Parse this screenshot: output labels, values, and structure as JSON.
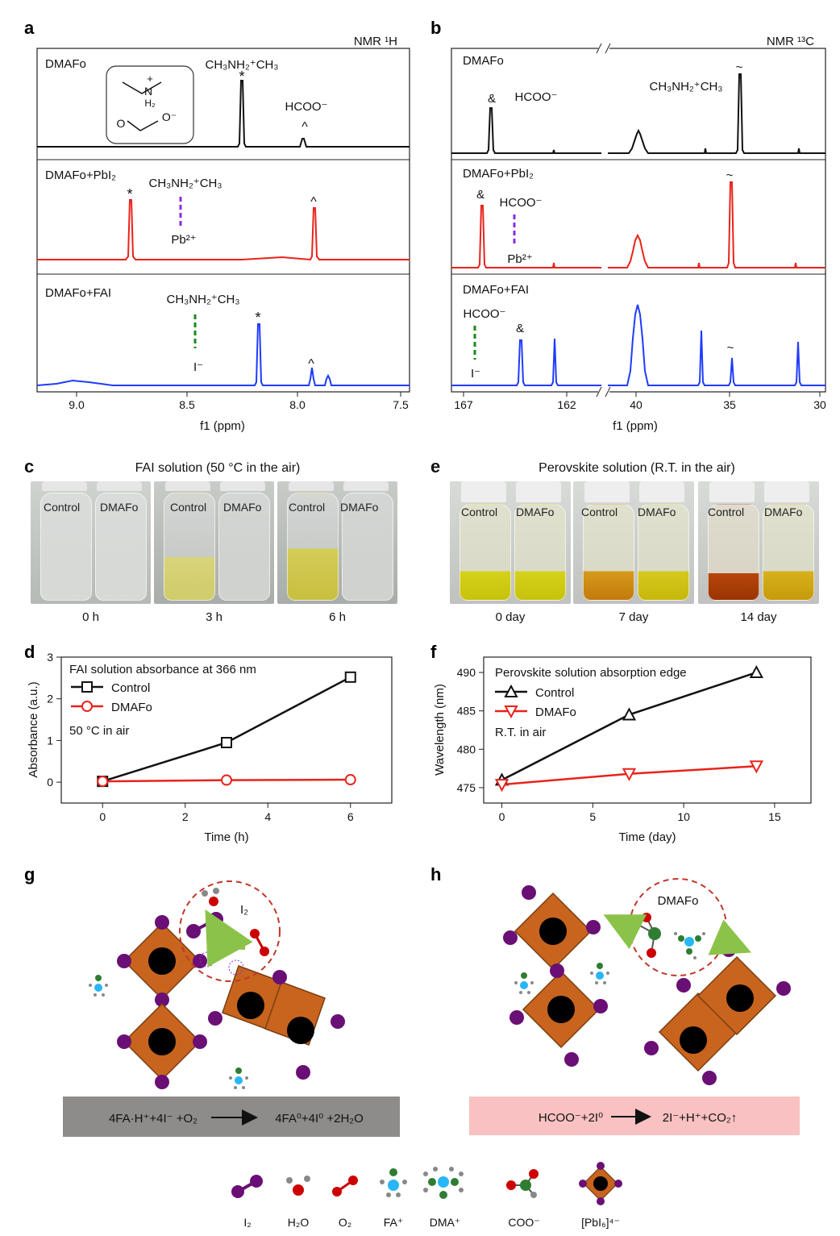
{
  "panel_labels": {
    "a": "a",
    "b": "b",
    "c": "c",
    "d": "d",
    "e": "e",
    "f": "f",
    "g": "g",
    "h": "h"
  },
  "colors": {
    "black": "#111111",
    "red": "#e8231b",
    "blue": "#1f3bff",
    "purple": "#8a2be2",
    "green": "#1a8a1a",
    "crystal": "#c8641e",
    "legend_gray": "#8e8c8a",
    "legend_pink": "#f9c1c1"
  },
  "panel_a": {
    "nmr_label": "NMR ¹H",
    "traces": [
      {
        "name": "DMAFo",
        "peaks": [
          {
            "label": "CH₃NH₂⁺CH₃",
            "mark": "*"
          },
          {
            "label": "HCOO⁻",
            "mark": "^"
          }
        ]
      },
      {
        "name": "DMAFo+PbI₂",
        "interaction": {
          "top": "CH₃NH₂⁺CH₃",
          "bottom": "Pb²⁺"
        }
      },
      {
        "name": "DMAFo+FAI",
        "interaction": {
          "top": "CH₃NH₂⁺CH₃",
          "bottom": "I⁻"
        }
      }
    ],
    "xlabel": "f1 (ppm)",
    "xticks": [
      "9.0",
      "8.5",
      "8.0",
      "7.5"
    ],
    "inset": {
      "charge": "+",
      "nh": "N",
      "h2": "H₂",
      "o1": "O",
      "o2": "O⁻"
    }
  },
  "panel_b": {
    "nmr_label": "NMR ¹³C",
    "traces": [
      {
        "name": "DMAFo",
        "labels": [
          "&",
          "HCOO⁻",
          "CH₃NH₂⁺CH₃",
          "~"
        ]
      },
      {
        "name": "DMAFo+PbI₂",
        "labels": [
          "&",
          "HCOO⁻",
          "Pb²⁺",
          "~"
        ]
      },
      {
        "name": "DMAFo+FAI",
        "labels": [
          "HCOO⁻",
          "&",
          "I⁻",
          "~"
        ]
      }
    ],
    "xlabel": "f1 (ppm)",
    "xticks": [
      "167",
      "162",
      "40",
      "35",
      "30"
    ]
  },
  "panel_c": {
    "title": "FAI solution (50 °C in the air)",
    "photos": [
      {
        "time": "0 h",
        "left": "Control",
        "right": "DMAFo"
      },
      {
        "time": "3 h",
        "left": "Control",
        "right": "DMAFo"
      },
      {
        "time": "6 h",
        "left": "Control",
        "right": "DMAFo"
      }
    ]
  },
  "panel_e": {
    "title": "Perovskite solution (R.T. in the air)",
    "photos": [
      {
        "time": "0 day",
        "left": "Control",
        "right": "DMAFo"
      },
      {
        "time": "7 day",
        "left": "Control",
        "right": "DMAFo"
      },
      {
        "time": "14 day",
        "left": "Control",
        "right": "DMAFo"
      }
    ]
  },
  "chart_data": [
    {
      "id": "d",
      "type": "line",
      "title": "FAI solution absorbance at 366 nm",
      "annotation": "50 °C in air",
      "xlabel": "Time (h)",
      "ylabel": "Absorbance (a.u.)",
      "xlim": [
        -1,
        7
      ],
      "ylim": [
        -0.5,
        3
      ],
      "xticks": [
        0,
        2,
        4,
        6
      ],
      "yticks": [
        0,
        1,
        2,
        3
      ],
      "series": [
        {
          "name": "Control",
          "marker": "square",
          "color": "#111111",
          "x": [
            0,
            3,
            6
          ],
          "y": [
            0.02,
            0.95,
            2.52
          ]
        },
        {
          "name": "DMAFo",
          "marker": "circle",
          "color": "#e8231b",
          "x": [
            0,
            3,
            6
          ],
          "y": [
            0.02,
            0.05,
            0.06
          ]
        }
      ]
    },
    {
      "id": "f",
      "type": "line",
      "title": "Perovskite solution absorption edge",
      "annotation": "R.T. in air",
      "xlabel": "Time (day)",
      "ylabel": "Wavelength (nm)",
      "xlim": [
        -1,
        17
      ],
      "ylim": [
        473,
        492
      ],
      "xticks": [
        0,
        5,
        10,
        15
      ],
      "yticks": [
        475,
        480,
        485,
        490
      ],
      "series": [
        {
          "name": "Control",
          "marker": "triangle-up",
          "color": "#111111",
          "x": [
            0,
            7,
            14
          ],
          "y": [
            476,
            484.5,
            490
          ]
        },
        {
          "name": "DMAFo",
          "marker": "triangle-down",
          "color": "#e8231b",
          "x": [
            0,
            7,
            14
          ],
          "y": [
            475.4,
            476.8,
            477.8
          ]
        }
      ]
    }
  ],
  "panel_g": {
    "i2_label": "I₂",
    "equation": {
      "lhs": "4FA·H⁺+4I⁻ +O₂",
      "rhs": "4FA⁰+4I⁰ +2H₂O"
    }
  },
  "panel_h": {
    "dmafo_label": "DMAFo",
    "equation": {
      "lhs": "HCOO⁻+2I⁰",
      "rhs": "2I⁻+H⁺+CO₂↑"
    }
  },
  "legend": [
    "I₂",
    "H₂O",
    "O₂",
    "FA⁺",
    "DMA⁺",
    "COO⁻",
    "[PbI₆]⁴⁻"
  ]
}
